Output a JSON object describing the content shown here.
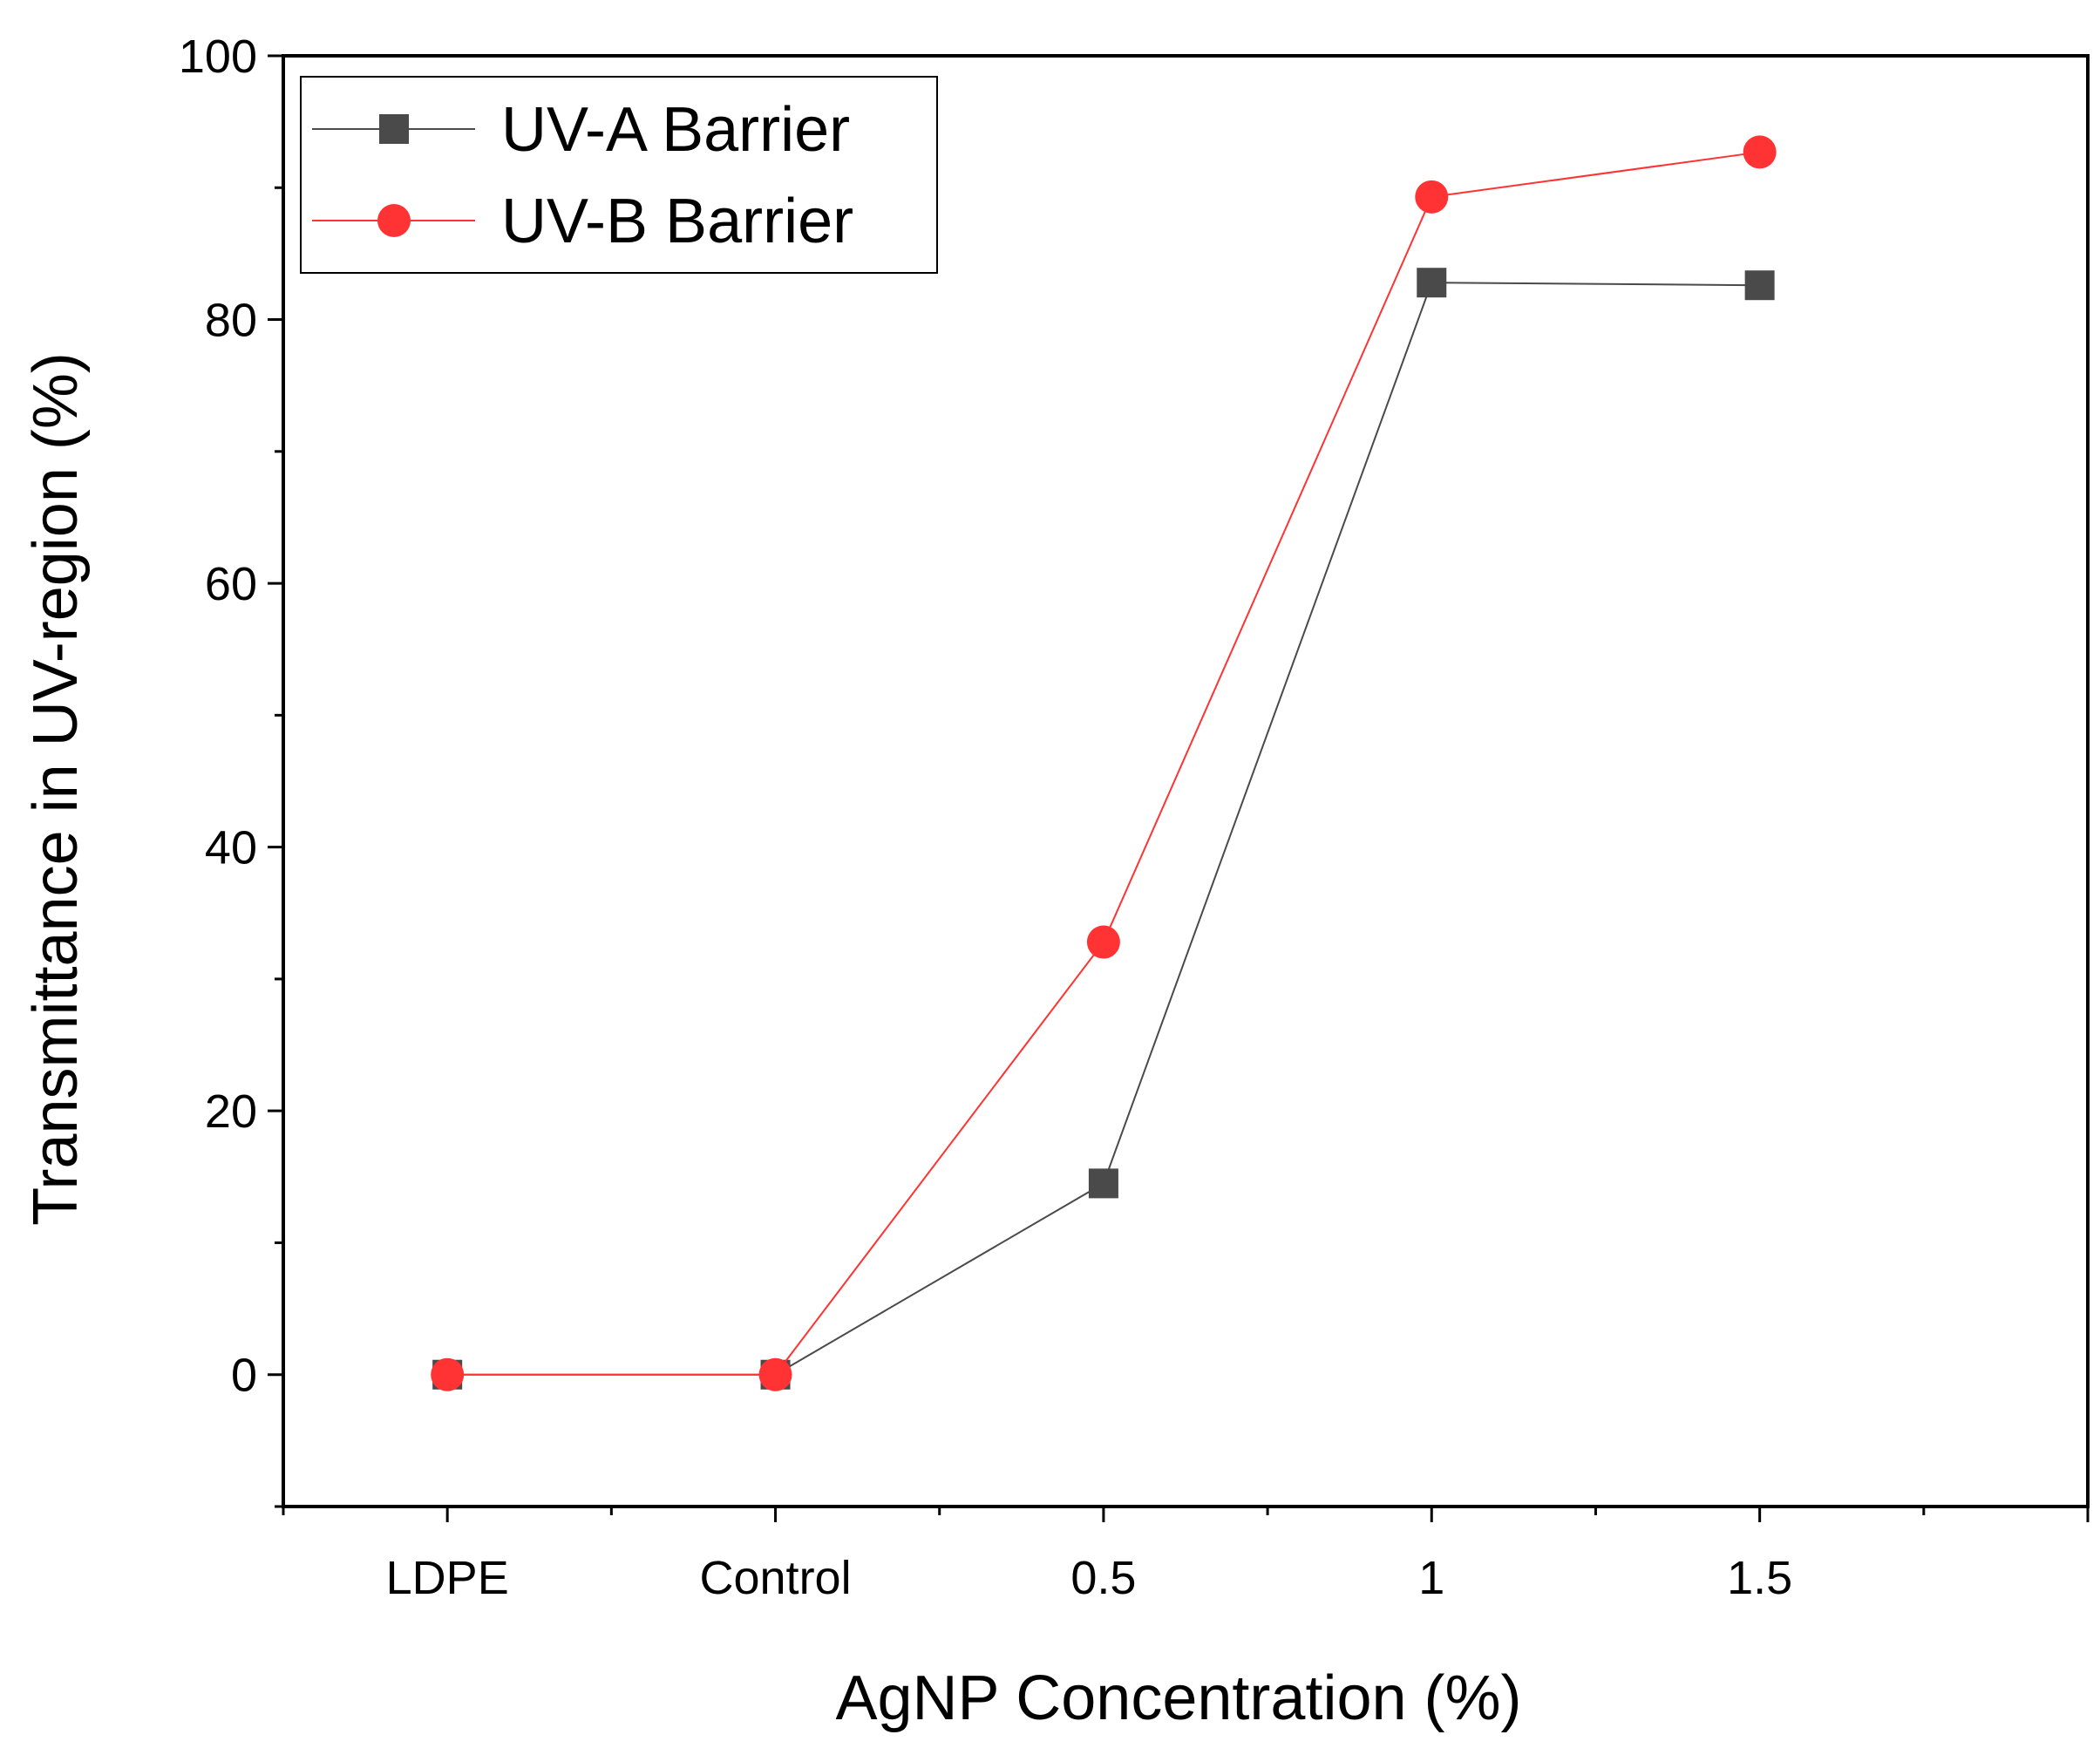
{
  "chart_data": {
    "type": "line",
    "categories": [
      "LDPE",
      "Control",
      "0.5",
      "1",
      "1.5"
    ],
    "series": [
      {
        "name": "UV-A Barrier",
        "values": [
          0,
          0,
          14.5,
          82.8,
          82.6
        ],
        "color": "#4a4a4a",
        "marker": "square"
      },
      {
        "name": "UV-B Barrier",
        "values": [
          0,
          0,
          32.8,
          89.3,
          92.7
        ],
        "color": "#ff3333",
        "marker": "circle"
      }
    ],
    "xlabel": "AgNP Concentration (%)",
    "ylabel": "Transmittance in UV-region (%)",
    "ylim": [
      -10,
      100
    ],
    "yticks": [
      "0",
      "20",
      "40",
      "60",
      "80",
      "100"
    ],
    "legend_position": "top-left",
    "grid": false
  }
}
